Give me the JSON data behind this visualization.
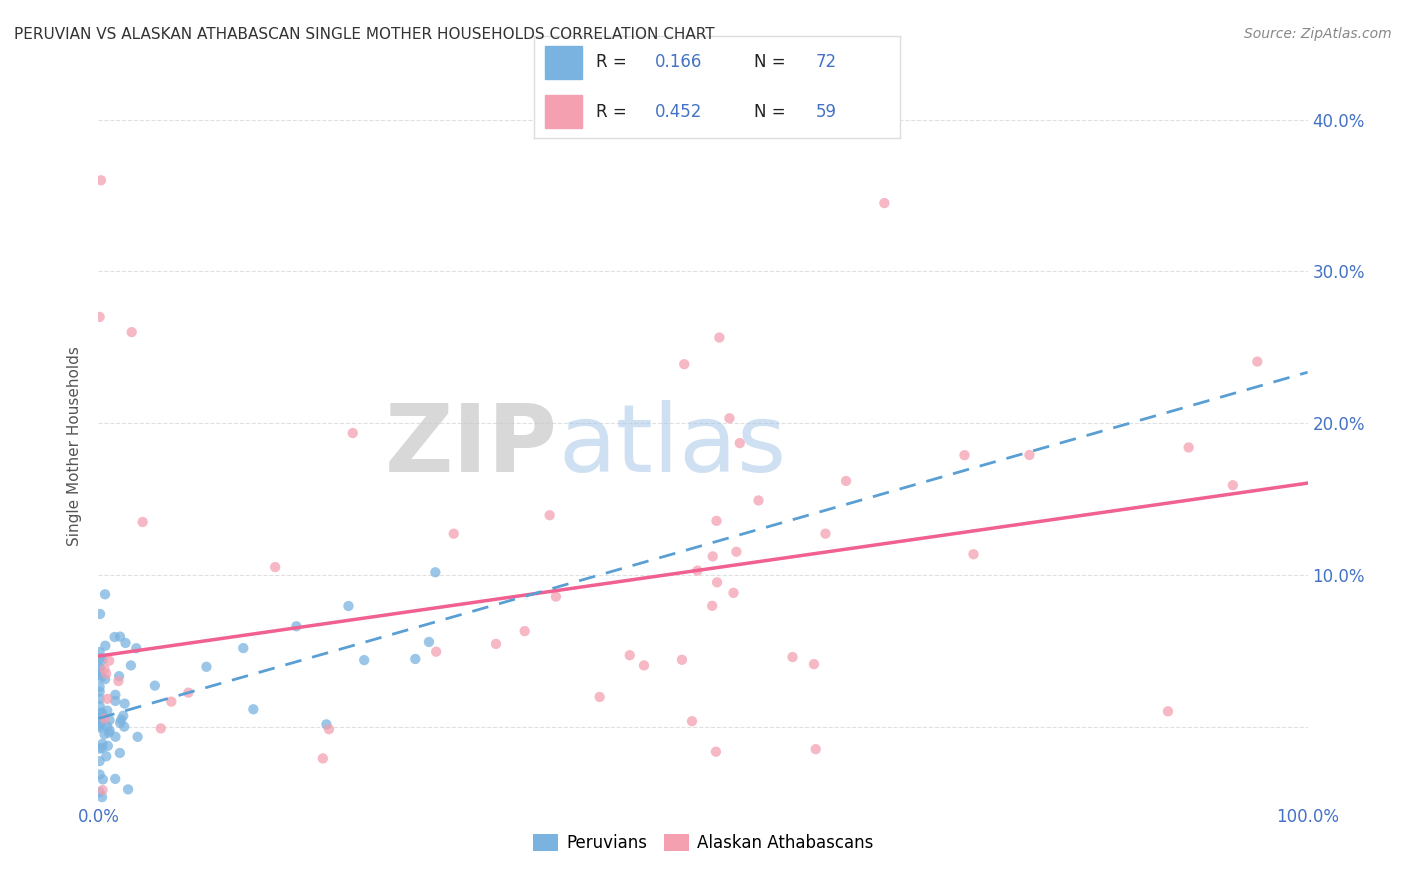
{
  "title": "PERUVIAN VS ALASKAN ATHABASCAN SINGLE MOTHER HOUSEHOLDS CORRELATION CHART",
  "source": "Source: ZipAtlas.com",
  "ylabel": "Single Mother Households",
  "watermark_zip": "ZIP",
  "watermark_atlas": "atlas",
  "peruvian_color": "#7ab3e0",
  "athabascan_color": "#f4a0b0",
  "peruvian_line_color": "#5a9fd4",
  "athabascan_line_color": "#f06090",
  "background_color": "#ffffff",
  "grid_color": "#cccccc",
  "R_peru": 0.166,
  "N_peru": 72,
  "R_atha": 0.452,
  "N_atha": 59,
  "xlim": [
    0.0,
    1.0
  ],
  "ylim": [
    -0.05,
    0.42
  ],
  "yticks": [
    0.0,
    0.1,
    0.2,
    0.3,
    0.4
  ],
  "blue_color": "#4472c4",
  "title_color": "#333333",
  "source_color": "#888888",
  "ylabel_color": "#555555",
  "legend_text_color": "#222222",
  "legend_border_color": "#dddddd",
  "peru_line_y0": 0.008,
  "peru_line_y1": 0.175,
  "atha_line_y0": 0.005,
  "atha_line_y1": 0.185
}
